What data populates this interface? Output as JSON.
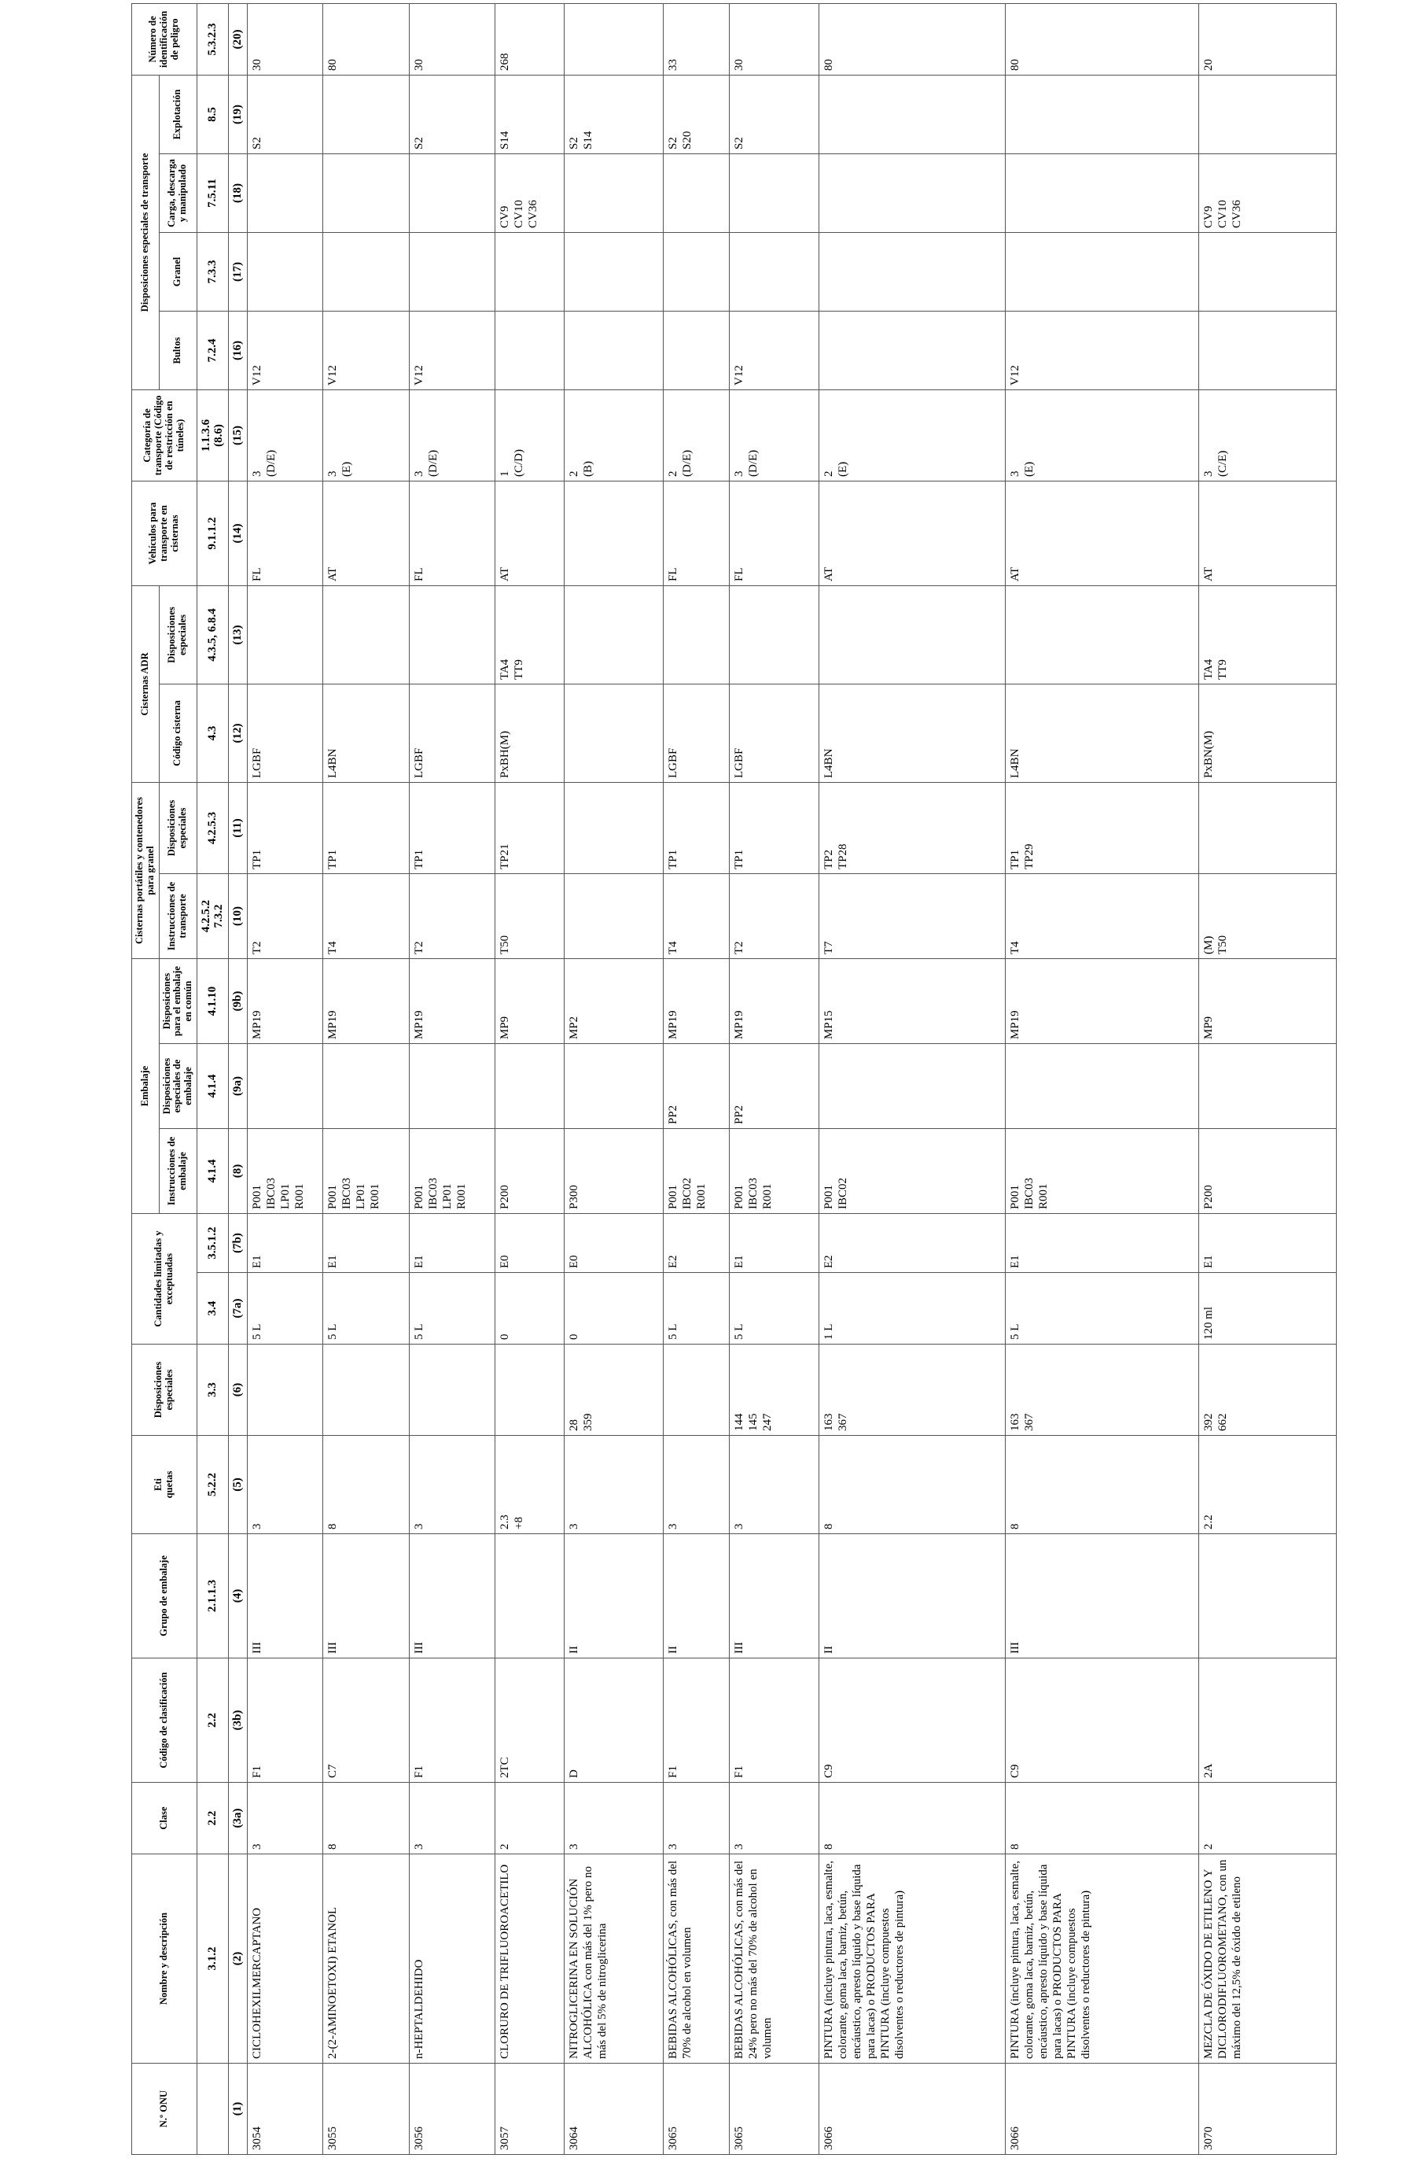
{
  "header": {
    "top": [
      "N.º ONU",
      "Nombre y descripción",
      "Clase",
      "Código de clasificación",
      "Grupo de embalaje",
      "Eti\nquetas",
      "Disposiciones especiales",
      "Cantidades limitadas y exceptuadas",
      "Embalaje",
      "Cisternas portátiles y contenedores para granel",
      "Cisternas ADR",
      "Vehículos para transporte en cisternas",
      "Categoría de transporte (Código de restricción en túneles)",
      "Disposiciones especiales de transporte",
      "Número de identificación de peligro"
    ],
    "sub": [
      "Instrucciones de embalaje",
      "Disposiciones especiales de embalaje",
      "Disposiciones para el embalaje en común",
      "Instrucciones de transporte",
      "Disposiciones especiales",
      "Código cisterna",
      "Disposiciones especiales",
      "Bultos",
      "Granel",
      "Carga, descarga y manipulado",
      "Explotación"
    ],
    "refs": [
      "3.1.2",
      "2.2",
      "2.2",
      "2.1.1.3",
      "5.2.2",
      "3.3",
      "3.4",
      "3.5.1.2",
      "4.1.4",
      "4.1.4",
      "4.1.10",
      "4.2.5.2\n7.3.2",
      "4.2.5.3",
      "4.3",
      "4.3.5, 6.8.4",
      "9.1.1.2",
      "1.1.3.6\n(8.6)",
      "7.2.4",
      "7.3.3",
      "7.5.11",
      "8.5",
      "5.3.2.3"
    ],
    "numbers": [
      "(1)",
      "(2)",
      "(3a)",
      "(3b)",
      "(4)",
      "(5)",
      "(6)",
      "(7a)",
      "(7b)",
      "(8)",
      "(9a)",
      "(9b)",
      "(10)",
      "(11)",
      "(12)",
      "(13)",
      "(14)",
      "(15)",
      "(16)",
      "(17)",
      "(18)",
      "(19)",
      "(20)"
    ]
  },
  "rows": [
    [
      "3054",
      "CICLOHEXILMERCAPTANO",
      "3",
      "F1",
      "III",
      "3",
      null,
      "5 L",
      "E1",
      "P001\nIBC03\nLP01\nR001",
      null,
      "MP19",
      "T2",
      "TP1",
      "LGBF",
      null,
      "FL",
      "3\n(D/E)",
      "V12",
      null,
      null,
      "S2",
      "30"
    ],
    [
      "3055",
      "2-(2-AMINOETOXI) ETANOL",
      "8",
      "C7",
      "III",
      "8",
      null,
      "5 L",
      "E1",
      "P001\nIBC03\nLP01\nR001",
      null,
      "MP19",
      "T4",
      "TP1",
      "L4BN",
      null,
      "AT",
      "3\n(E)",
      "V12",
      null,
      null,
      null,
      "80"
    ],
    [
      "3056",
      "n-HEPTALDEHIDO",
      "3",
      "F1",
      "III",
      "3",
      null,
      "5 L",
      "E1",
      "P001\nIBC03\nLP01\nR001",
      null,
      "MP19",
      "T2",
      "TP1",
      "LGBF",
      null,
      "FL",
      "3\n(D/E)",
      "V12",
      null,
      null,
      "S2",
      "30"
    ],
    [
      "3057",
      "CLORURO DE TRIFLUOROACETILO",
      "2",
      "2TC",
      null,
      "2.3\n+8",
      null,
      "0",
      "E0",
      "P200",
      null,
      "MP9",
      "T50",
      "TP21",
      "PxBH(M)",
      "TA4\nTT9",
      "AT",
      "1\n(C/D)",
      null,
      null,
      "CV9\nCV10\nCV36",
      "S14",
      "268"
    ],
    [
      "3064",
      "NITROGLICERINA EN SOLUCIÓN ALCOHÓLICA con más del 1% pero no más del 5% de nitroglicerina",
      "3",
      "D",
      "II",
      "3",
      "28\n359",
      "0",
      "E0",
      "P300",
      null,
      "MP2",
      null,
      null,
      null,
      null,
      null,
      "2\n(B)",
      null,
      null,
      null,
      "S2\nS14",
      null
    ],
    [
      "3065",
      "BEBIDAS ALCOHÓLICAS, con más del 70% de alcohol en volumen",
      "3",
      "F1",
      "II",
      "3",
      null,
      "5 L",
      "E2",
      "P001\nIBC02\nR001",
      "PP2",
      "MP19",
      "T4",
      "TP1",
      "LGBF",
      null,
      "FL",
      "2\n(D/E)",
      null,
      null,
      null,
      "S2\nS20",
      "33"
    ],
    [
      "3065",
      "BEBIDAS ALCOHÓLICAS, con más del 24% pero no más del 70% de alcohol en volumen",
      "3",
      "F1",
      "III",
      "3",
      "144\n145\n247",
      "5 L",
      "E1",
      "P001\nIBC03\nR001",
      "PP2",
      "MP19",
      "T2",
      "TP1",
      "LGBF",
      null,
      "FL",
      "3\n(D/E)",
      "V12",
      null,
      null,
      "S2",
      "30"
    ],
    [
      "3066",
      "PINTURA (incluye pintura, laca, esmalte, colorante, goma laca, barniz, betún, encáustico, apresto líquido y base líquida para lacas) o PRODUCTOS PARA PINTURA (incluye compuestos disolventes o reductores de pintura)",
      "8",
      "C9",
      "II",
      "8",
      "163\n367",
      "1 L",
      "E2",
      "P001\nIBC02",
      null,
      "MP15",
      "T7",
      "TP2\nTP28",
      "L4BN",
      null,
      "AT",
      "2\n(E)",
      null,
      null,
      null,
      null,
      "80"
    ],
    [
      "3066",
      "PINTURA (incluye pintura, laca, esmalte, colorante, goma laca, barniz, betún, encáustico, apresto líquido y base líquida para lacas) o PRODUCTOS PARA PINTURA (incluye compuestos disolventes o reductores de pintura)",
      "8",
      "C9",
      "III",
      "8",
      "163\n367",
      "5 L",
      "E1",
      "P001\nIBC03\nR001",
      null,
      "MP19",
      "T4",
      "TP1\nTP29",
      "L4BN",
      null,
      "AT",
      "3\n(E)",
      "V12",
      null,
      null,
      null,
      "80"
    ],
    [
      "3070",
      "MEZCLA DE ÓXIDO DE ETILENO Y DICLORODIFLUOROMETANO, con un máximo del 12,5% de óxido de etileno",
      "2",
      "2A",
      null,
      "2.2",
      "392\n662",
      "120 ml",
      "E1",
      "P200",
      null,
      "MP9",
      "(M)\nT50",
      null,
      "PxBN(M)",
      "TA4\nTT9",
      "AT",
      "3\n(C/E)",
      null,
      null,
      "CV9\nCV10\nCV36",
      null,
      "20"
    ]
  ]
}
